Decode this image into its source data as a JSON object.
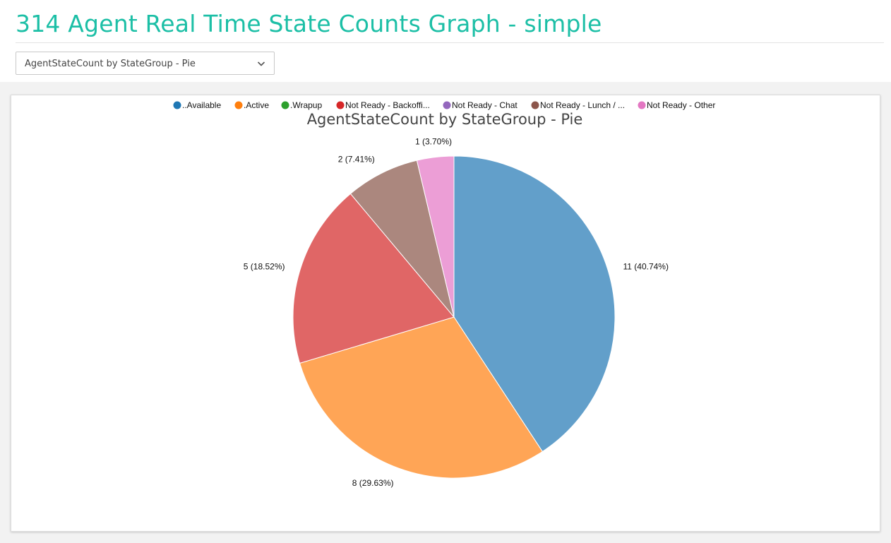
{
  "page": {
    "title": "314 Agent Real Time State Counts Graph - simple"
  },
  "selector": {
    "value": "AgentStateCount by StateGroup - Pie"
  },
  "legend": [
    {
      "label": "..Available",
      "color": "#1f77b4"
    },
    {
      "label": ".Active",
      "color": "#ff7f0e"
    },
    {
      "label": ".Wrapup",
      "color": "#2ca02c"
    },
    {
      "label": "Not Ready - Backoffi...",
      "color": "#d62728"
    },
    {
      "label": "Not Ready - Chat",
      "color": "#9467bd"
    },
    {
      "label": "Not Ready - Lunch / ...",
      "color": "#8c564b"
    },
    {
      "label": "Not Ready - Other",
      "color": "#e377c2"
    }
  ],
  "chart_data": {
    "type": "pie",
    "title": "AgentStateCount by StateGroup - Pie",
    "legend_position": "top",
    "slices": [
      {
        "label": "..Available",
        "value": 11,
        "percent": "40.74%",
        "display": "11 (40.74%)",
        "color": "#629fca"
      },
      {
        "label": ".Active",
        "value": 8,
        "percent": "29.63%",
        "display": "8 (29.63%)",
        "color": "#ffa556"
      },
      {
        "label": "Not Ready - Backoffi...",
        "value": 5,
        "percent": "18.52%",
        "display": "5 (18.52%)",
        "color": "#e06666"
      },
      {
        "label": "Not Ready - Lunch / ...",
        "value": 2,
        "percent": "7.41%",
        "display": "2 (7.41%)",
        "color": "#ab877e"
      },
      {
        "label": "Not Ready - Other",
        "value": 1,
        "percent": "3.70%",
        "display": "1 (3.70%)",
        "color": "#ec9ed6"
      }
    ]
  }
}
